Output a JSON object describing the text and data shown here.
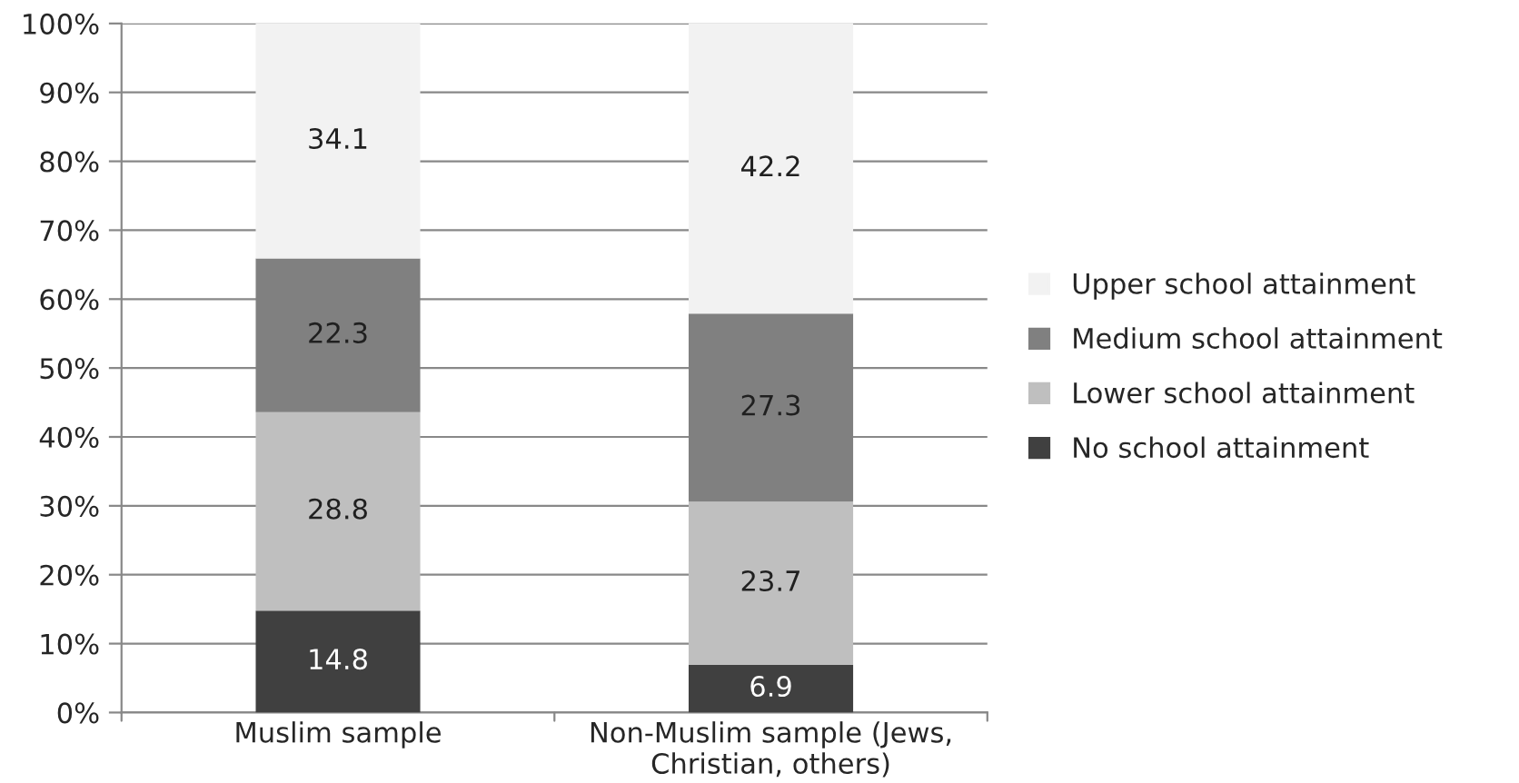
{
  "chart_data": {
    "type": "bar",
    "stacked": true,
    "categories": [
      "Muslim sample",
      "Non-Muslim sample (Jews,\nChristian, others)"
    ],
    "series": [
      {
        "name": "No school attainment",
        "color": "#404040",
        "values": [
          14.8,
          6.9
        ]
      },
      {
        "name": "Lower school attainment",
        "color": "#bfbfbf",
        "values": [
          28.8,
          23.7
        ]
      },
      {
        "name": "Medium school attainment",
        "color": "#808080",
        "values": [
          22.3,
          27.3
        ]
      },
      {
        "name": "Upper school attainment",
        "color": "#f2f2f2",
        "values": [
          34.1,
          42.2
        ]
      }
    ],
    "ylim": [
      0,
      100
    ],
    "yticks": [
      {
        "value": 0,
        "label": "0%"
      },
      {
        "value": 10,
        "label": "10%"
      },
      {
        "value": 20,
        "label": "20%"
      },
      {
        "value": 30,
        "label": "30%"
      },
      {
        "value": 40,
        "label": "40%"
      },
      {
        "value": 50,
        "label": "50%"
      },
      {
        "value": 60,
        "label": "60%"
      },
      {
        "value": 70,
        "label": "70%"
      },
      {
        "value": 80,
        "label": "80%"
      },
      {
        "value": 90,
        "label": "90%"
      },
      {
        "value": 100,
        "label": "100%"
      }
    ],
    "grid": "y",
    "legend": "right",
    "data_labels": true
  }
}
